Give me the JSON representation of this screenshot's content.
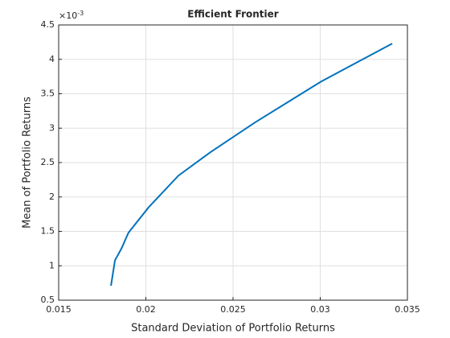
{
  "chart_data": {
    "type": "line",
    "title": "Efficient Frontier",
    "x_label": "Standard Deviation of Portfolio Returns",
    "y_label": "Mean of Portfolio Returns",
    "y_multiplier": {
      "base": "×10",
      "exponent": "-3"
    },
    "x": [
      0.018,
      0.01823,
      0.0186,
      0.019,
      0.02016,
      0.02187,
      0.0237,
      0.02624,
      0.03007,
      0.03214,
      0.03413
    ],
    "series": [
      {
        "color": "#0072bd",
        "values": [
          0.71,
          1.08,
          1.25,
          1.48,
          1.85,
          2.31,
          2.65,
          3.08,
          3.68,
          3.96,
          4.23
        ]
      }
    ],
    "xlim": [
      0.015,
      0.035
    ],
    "xticks": [
      0.015,
      0.02,
      0.025,
      0.03,
      0.035
    ],
    "ylim": [
      0.5,
      4.5
    ],
    "yticks": [
      0.5,
      1,
      1.5,
      2,
      2.5,
      3,
      3.5,
      4,
      4.5
    ],
    "grid": true
  }
}
